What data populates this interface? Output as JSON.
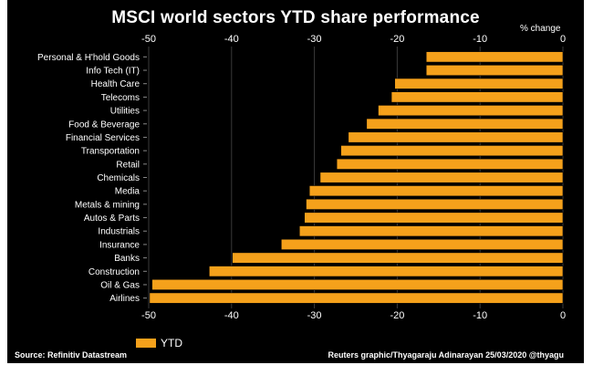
{
  "chart_data": {
    "type": "bar",
    "orientation": "horizontal",
    "title": "MSCI world sectors YTD share performance",
    "units_label": "% change",
    "xlim": [
      -50,
      0
    ],
    "x_ticks": [
      -50,
      -40,
      -30,
      -20,
      -10,
      0
    ],
    "grid": true,
    "legend_position": "bottom-left",
    "series": [
      {
        "name": "YTD",
        "color": "#f5a11b",
        "values": [
          -16.5,
          -16.5,
          -20.3,
          -20.7,
          -22.3,
          -23.7,
          -25.9,
          -26.8,
          -27.3,
          -29.3,
          -30.6,
          -31.0,
          -31.2,
          -31.8,
          -34.0,
          -39.9,
          -42.7,
          -49.6,
          -49.9
        ]
      }
    ],
    "categories": [
      "Personal & H'hold Goods",
      "Info Tech (IT)",
      "Health Care",
      "Telecoms",
      "Utilities",
      "Food & Beverage",
      "Financial Services",
      "Transportation",
      "Retail",
      "Chemicals",
      "Media",
      "Metals & mining",
      "Autos & Parts",
      "Industrials",
      "Insurance",
      "Banks",
      "Construction",
      "Oil & Gas",
      "Airlines"
    ]
  },
  "footer": {
    "source": "Source: Refinitiv Datastream",
    "credit": "Reuters graphic/Thyagaraju Adinarayan 25/03/2020 @thyagu"
  }
}
